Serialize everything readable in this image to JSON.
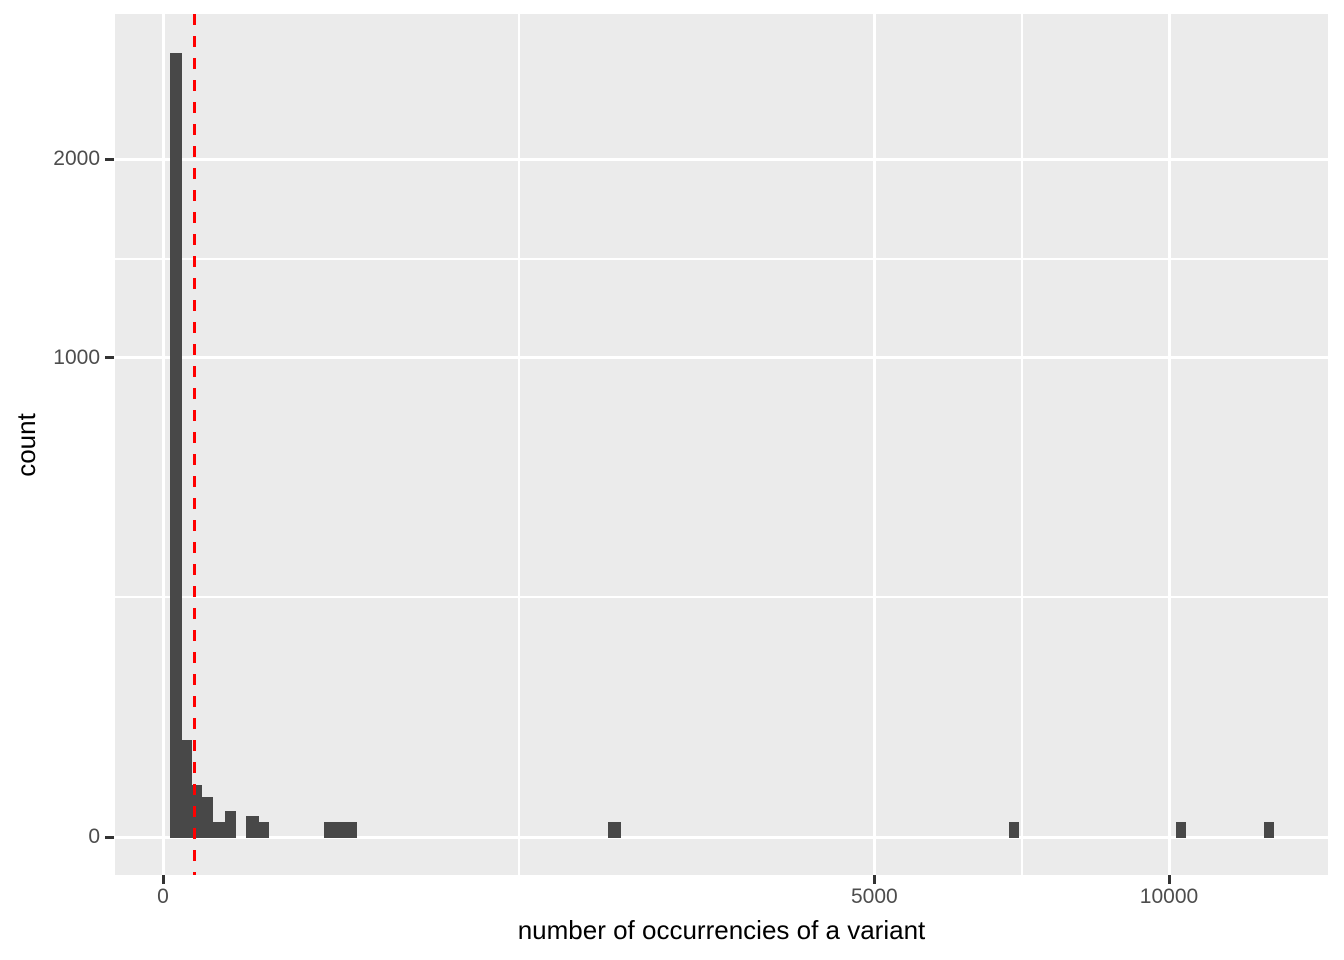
{
  "chart_data": {
    "type": "bar",
    "subtype": "histogram",
    "title": "",
    "xlabel": "number of occurrencies of a variant",
    "ylabel": "count",
    "x_scale": "sqrt",
    "y_scale": "sqrt",
    "x_ticks": [
      0,
      5000,
      10000
    ],
    "x_minor_breaks": [
      1250,
      7286
    ],
    "y_ticks": [
      0,
      1000,
      2000
    ],
    "y_minor_breaks": [
      250,
      1457
    ],
    "x_axis_max": 13500,
    "y_axis_max": 2960,
    "grid": true,
    "legend": "none",
    "bins": [
      {
        "x0": 0.5,
        "x1": 3.4,
        "count": 2678
      },
      {
        "x0": 3.4,
        "x1": 8.1,
        "count": 41
      },
      {
        "x0": 8.1,
        "x1": 14.7,
        "count": 12
      },
      {
        "x0": 14.7,
        "x1": 24.8,
        "count": 7
      },
      {
        "x0": 24.8,
        "x1": 37.7,
        "count": 1
      },
      {
        "x0": 37.7,
        "x1": 52.2,
        "count": 3
      },
      {
        "x0": 68.7,
        "x1": 90.9,
        "count": 2
      },
      {
        "x0": 90.9,
        "x1": 110.8,
        "count": 1
      },
      {
        "x0": 255,
        "x1": 370,
        "count": 1
      },
      {
        "x0": 1958,
        "x1": 2074,
        "count": 1
      },
      {
        "x0": 7066,
        "x1": 7233,
        "count": 1
      },
      {
        "x0": 10140,
        "x1": 10342,
        "count": 1
      },
      {
        "x0": 11970,
        "x1": 12190,
        "count": 1
      }
    ],
    "vline": {
      "x": 10,
      "linetype": "dashed"
    },
    "colors": {
      "bar": "#484848",
      "panel_background": "#EBEBEB",
      "gridline": "#FFFFFF",
      "vline": "#FF0000",
      "tick_label": "#4D4D4D",
      "tick_mark": "#333333",
      "axis_title": "#000000",
      "figure_background": "#FFFFFF"
    }
  }
}
